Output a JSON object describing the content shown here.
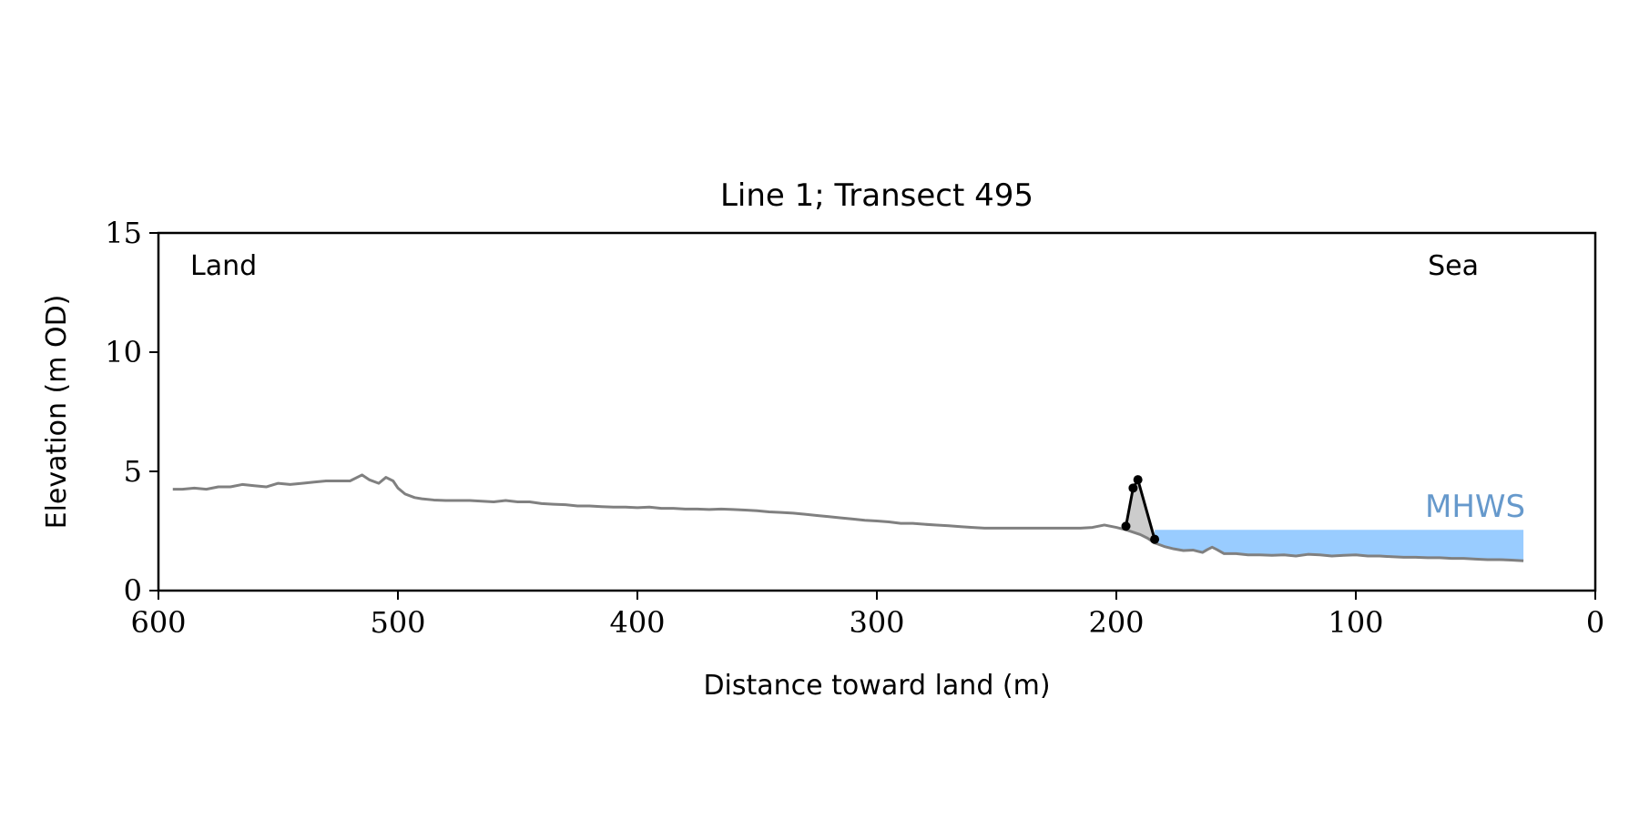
{
  "chart_data": {
    "type": "line",
    "title": "Line 1; Transect 495",
    "xlabel": "Distance toward land (m)",
    "ylabel": "Elevation (m OD)",
    "xlim": [
      600,
      0
    ],
    "ylim": [
      0,
      15
    ],
    "x_reversed": true,
    "grid": false,
    "xticks": [
      600,
      500,
      400,
      300,
      200,
      100,
      0
    ],
    "yticks": [
      0,
      5,
      10,
      15
    ],
    "annotations": {
      "land_label": "Land",
      "sea_label": "Sea",
      "water_label": "MHWS"
    },
    "colors": {
      "profile": "#808080",
      "dune": "#000000",
      "dune_fill": "#cccccc",
      "water": "#99ccff",
      "water_label": "#6699cc"
    },
    "water_level": {
      "elevation": 2.55,
      "x_start": 184,
      "x_end": 30
    },
    "series": [
      {
        "role": "profile",
        "x": [
          594,
          590,
          585,
          580,
          575,
          570,
          565,
          560,
          555,
          550,
          545,
          540,
          535,
          530,
          525,
          520,
          515,
          512,
          508,
          505,
          502,
          500,
          497,
          493,
          490,
          485,
          480,
          475,
          470,
          465,
          460,
          455,
          450,
          445,
          440,
          435,
          430,
          425,
          420,
          415,
          410,
          405,
          400,
          395,
          390,
          385,
          380,
          375,
          370,
          365,
          360,
          355,
          350,
          345,
          340,
          335,
          330,
          325,
          320,
          315,
          310,
          305,
          300,
          295,
          290,
          285,
          280,
          275,
          270,
          265,
          260,
          255,
          250,
          245,
          240,
          235,
          230,
          225,
          220,
          215,
          210,
          205,
          200,
          196,
          193,
          190,
          187,
          184,
          180,
          176,
          172,
          168,
          166,
          164,
          162,
          160,
          158,
          155,
          150,
          145,
          140,
          135,
          130,
          125,
          120,
          115,
          110,
          105,
          100,
          95,
          90,
          85,
          80,
          75,
          70,
          65,
          60,
          55,
          50,
          45,
          40,
          35,
          30
        ],
        "y": [
          4.25,
          4.25,
          4.3,
          4.25,
          4.35,
          4.35,
          4.45,
          4.4,
          4.35,
          4.5,
          4.45,
          4.5,
          4.55,
          4.6,
          4.6,
          4.6,
          4.85,
          4.65,
          4.5,
          4.75,
          4.6,
          4.3,
          4.05,
          3.9,
          3.85,
          3.8,
          3.78,
          3.78,
          3.78,
          3.75,
          3.72,
          3.78,
          3.72,
          3.72,
          3.65,
          3.62,
          3.6,
          3.55,
          3.55,
          3.52,
          3.5,
          3.5,
          3.48,
          3.5,
          3.45,
          3.45,
          3.42,
          3.42,
          3.4,
          3.42,
          3.4,
          3.38,
          3.35,
          3.3,
          3.28,
          3.25,
          3.2,
          3.15,
          3.1,
          3.05,
          3.0,
          2.95,
          2.92,
          2.88,
          2.82,
          2.82,
          2.78,
          2.75,
          2.72,
          2.68,
          2.65,
          2.62,
          2.62,
          2.62,
          2.62,
          2.62,
          2.62,
          2.62,
          2.62,
          2.62,
          2.65,
          2.75,
          2.65,
          2.55,
          2.45,
          2.35,
          2.2,
          2.0,
          1.85,
          1.75,
          1.68,
          1.7,
          1.65,
          1.6,
          1.72,
          1.82,
          1.72,
          1.55,
          1.55,
          1.5,
          1.5,
          1.48,
          1.5,
          1.45,
          1.52,
          1.5,
          1.45,
          1.48,
          1.5,
          1.45,
          1.45,
          1.42,
          1.4,
          1.4,
          1.38,
          1.38,
          1.35,
          1.35,
          1.32,
          1.3,
          1.3,
          1.28,
          1.25
        ]
      },
      {
        "role": "dune",
        "x": [
          196,
          193,
          191,
          184
        ],
        "y": [
          2.7,
          4.3,
          4.65,
          2.15
        ]
      }
    ]
  }
}
